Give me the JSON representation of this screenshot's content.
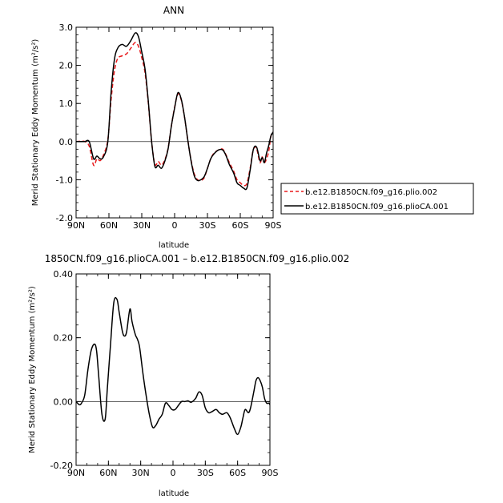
{
  "chart_data": [
    {
      "type": "line",
      "title": "ANN",
      "xlabel": "latitude",
      "ylabel": "Merid Stationary Eddy Momentum (m²/s²)",
      "xlim": [
        90,
        -90
      ],
      "ylim": [
        -2.0,
        3.0
      ],
      "x_ticks": [
        {
          "value": 90,
          "label": "90N"
        },
        {
          "value": 60,
          "label": "60N"
        },
        {
          "value": 30,
          "label": "30N"
        },
        {
          "value": 0,
          "label": "0"
        },
        {
          "value": -30,
          "label": "30S"
        },
        {
          "value": -60,
          "label": "60S"
        },
        {
          "value": -90,
          "label": "90S"
        }
      ],
      "y_ticks": [
        {
          "value": -2.0,
          "label": "-2.0"
        },
        {
          "value": -1.0,
          "label": "-1.0"
        },
        {
          "value": 0.0,
          "label": "0.0"
        },
        {
          "value": 1.0,
          "label": "1.0"
        },
        {
          "value": 2.0,
          "label": "2.0"
        },
        {
          "value": 3.0,
          "label": "3.0"
        }
      ],
      "legend_position": "right",
      "series": [
        {
          "name": "b.e12.B1850CN.f09_g16.plio.002",
          "color": "#e8191b",
          "dash": true,
          "x": [
            90,
            85,
            82,
            78,
            74,
            71,
            68,
            65,
            61,
            58,
            55,
            52,
            48,
            44,
            40,
            36,
            33,
            30,
            27,
            24,
            21,
            18,
            15,
            12,
            9,
            6,
            3,
            0,
            -3,
            -6,
            -9,
            -12,
            -15,
            -18,
            -21,
            -24,
            -27,
            -30,
            -33,
            -36,
            -40,
            -44,
            -47,
            -50,
            -54,
            -57,
            -60,
            -63,
            -66,
            -69,
            -72,
            -75,
            -78,
            -80,
            -82,
            -84,
            -86,
            -88,
            -90
          ],
          "y": [
            0.0,
            0.01,
            0.0,
            -0.12,
            -0.62,
            -0.45,
            -0.5,
            -0.35,
            0.05,
            1.1,
            1.85,
            2.18,
            2.25,
            2.3,
            2.45,
            2.6,
            2.5,
            2.2,
            1.8,
            1.0,
            0.0,
            -0.6,
            -0.52,
            -0.62,
            -0.48,
            -0.18,
            0.4,
            0.9,
            1.25,
            1.1,
            0.65,
            0.05,
            -0.48,
            -0.85,
            -1.0,
            -1.02,
            -0.95,
            -0.7,
            -0.45,
            -0.3,
            -0.22,
            -0.2,
            -0.35,
            -0.55,
            -0.78,
            -1.0,
            -1.08,
            -1.15,
            -1.1,
            -0.7,
            -0.2,
            -0.2,
            -0.55,
            -0.4,
            -0.55,
            -0.45,
            -0.25,
            0.15,
            0.25
          ]
        },
        {
          "name": "b.e12.B1850CN.f09_g16.plioCA.001",
          "color": "#000000",
          "dash": false,
          "x": [
            90,
            85,
            82,
            78,
            74,
            71,
            68,
            65,
            61,
            58,
            55,
            52,
            48,
            44,
            40,
            36,
            33,
            30,
            27,
            24,
            21,
            18,
            15,
            12,
            9,
            6,
            3,
            0,
            -3,
            -6,
            -9,
            -12,
            -15,
            -18,
            -21,
            -24,
            -27,
            -30,
            -33,
            -36,
            -40,
            -44,
            -47,
            -50,
            -54,
            -57,
            -60,
            -63,
            -66,
            -69,
            -72,
            -75,
            -78,
            -80,
            -82,
            -84,
            -86,
            -88,
            -90
          ],
          "y": [
            0.0,
            0.0,
            0.0,
            0.0,
            -0.45,
            -0.38,
            -0.45,
            -0.4,
            0.0,
            1.3,
            2.15,
            2.45,
            2.55,
            2.5,
            2.65,
            2.85,
            2.75,
            2.35,
            1.9,
            1.05,
            0.0,
            -0.65,
            -0.62,
            -0.7,
            -0.52,
            -0.2,
            0.4,
            0.88,
            1.28,
            1.12,
            0.66,
            0.05,
            -0.5,
            -0.9,
            -1.02,
            -1.0,
            -0.92,
            -0.7,
            -0.45,
            -0.32,
            -0.22,
            -0.22,
            -0.37,
            -0.6,
            -0.83,
            -1.08,
            -1.15,
            -1.22,
            -1.22,
            -0.75,
            -0.2,
            -0.15,
            -0.5,
            -0.42,
            -0.55,
            -0.3,
            -0.1,
            0.15,
            0.25
          ]
        }
      ]
    },
    {
      "type": "line",
      "title": "1850CN.f09_g16.plioCA.001 – b.e12.B1850CN.f09_g16.plio.002",
      "xlabel": "latitude",
      "ylabel": "Merid Stationary Eddy Momentum (m²/s²)",
      "xlim": [
        90,
        -90
      ],
      "ylim": [
        -0.2,
        0.4
      ],
      "x_ticks": [
        {
          "value": 90,
          "label": "90N"
        },
        {
          "value": 60,
          "label": "60N"
        },
        {
          "value": 30,
          "label": "30N"
        },
        {
          "value": 0,
          "label": "0"
        },
        {
          "value": -30,
          "label": "30S"
        },
        {
          "value": -60,
          "label": "60S"
        },
        {
          "value": -90,
          "label": "90S"
        }
      ],
      "y_ticks": [
        {
          "value": -0.2,
          "label": "-0.20"
        },
        {
          "value": 0.0,
          "label": "0.00"
        },
        {
          "value": 0.2,
          "label": "0.20"
        },
        {
          "value": 0.4,
          "label": "0.40"
        }
      ],
      "series": [
        {
          "color": "#000000",
          "dash": false,
          "x": [
            90,
            87,
            85,
            82,
            79,
            76,
            73,
            71,
            69,
            66,
            63,
            61,
            58,
            55,
            52,
            50,
            47,
            45,
            43,
            40,
            38,
            35,
            33,
            31,
            28,
            25,
            22,
            19,
            16,
            13,
            10,
            7,
            4,
            1,
            -2,
            -5,
            -8,
            -11,
            -14,
            -17,
            -21,
            -24,
            -27,
            -30,
            -33,
            -36,
            -40,
            -43,
            -46,
            -50,
            -53,
            -57,
            -60,
            -63,
            -65,
            -67,
            -70,
            -72,
            -75,
            -77,
            -79,
            -81,
            -83,
            -85,
            -87,
            -89,
            -90
          ],
          "y": [
            0.0,
            -0.01,
            -0.005,
            0.02,
            0.1,
            0.16,
            0.18,
            0.16,
            0.08,
            -0.04,
            -0.055,
            0.04,
            0.18,
            0.31,
            0.32,
            0.28,
            0.22,
            0.205,
            0.22,
            0.29,
            0.25,
            0.21,
            0.195,
            0.17,
            0.09,
            0.02,
            -0.04,
            -0.08,
            -0.075,
            -0.055,
            -0.04,
            -0.005,
            -0.012,
            -0.025,
            -0.025,
            -0.012,
            0.0,
            0.0,
            0.002,
            -0.002,
            0.01,
            0.03,
            0.02,
            -0.02,
            -0.035,
            -0.032,
            -0.025,
            -0.035,
            -0.04,
            -0.035,
            -0.05,
            -0.085,
            -0.103,
            -0.08,
            -0.05,
            -0.025,
            -0.035,
            -0.02,
            0.03,
            0.065,
            0.075,
            0.065,
            0.045,
            0.01,
            -0.005,
            -0.005,
            -0.01
          ]
        }
      ]
    }
  ]
}
